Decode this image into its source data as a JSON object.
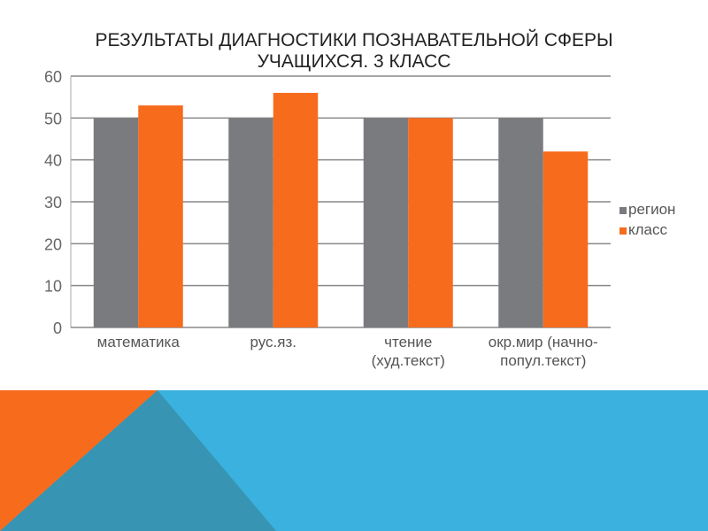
{
  "title": {
    "line1": "Результаты диагностики познавательной сферы",
    "line2": "учащихся. 3 класс"
  },
  "colors": {
    "region": "#7a7b7e",
    "class": "#f76b1c",
    "band_blue": "#3ab1de",
    "band_teal": "#3894b3",
    "band_orange": "#f76b1c"
  },
  "chart_data": {
    "type": "bar",
    "title": "Результаты диагностики познавательной сферы учащихся. 3 класс",
    "categories": [
      [
        "математика"
      ],
      [
        "рус.яз."
      ],
      [
        "чтение",
        "(худ.текст)"
      ],
      [
        "окр.мир (начно-",
        "попул.текст)"
      ]
    ],
    "series": [
      {
        "name": "регион",
        "values": [
          50,
          50,
          50,
          50
        ]
      },
      {
        "name": "класс",
        "values": [
          53,
          56,
          50,
          42
        ]
      }
    ],
    "ylim": [
      0,
      60
    ],
    "yticks": [
      0,
      10,
      20,
      30,
      40,
      50,
      60
    ],
    "grid": true,
    "legend": "right",
    "xlabel": "",
    "ylabel": ""
  }
}
